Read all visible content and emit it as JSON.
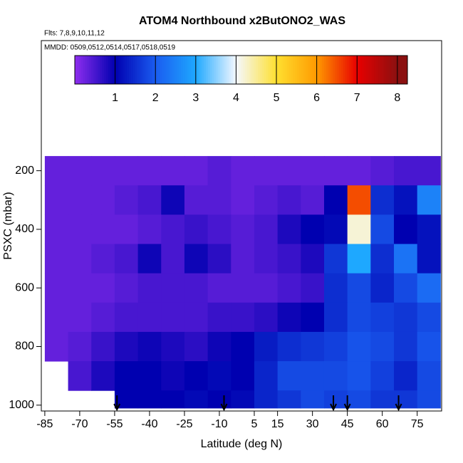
{
  "chart_data": {
    "type": "heatmap",
    "title": "ATOM4 Northbound x2ButONO2_WAS",
    "subtitle": "Flts: 7,8,9,10,11,12",
    "annotation": "MMDD: 0509,0512,0514,0517,0518,0519",
    "xlabel": "Latitude (deg N)",
    "ylabel": "PSXC (mbar)",
    "xlim": [
      -86.5,
      85.5
    ],
    "xticks": [
      -85,
      -70,
      -55,
      -40,
      -25,
      -10,
      5,
      15,
      30,
      45,
      60,
      75
    ],
    "ylim": [
      1020,
      -244
    ],
    "yticks": [
      200,
      400,
      600,
      800,
      1000
    ],
    "x_bins": [
      -85,
      -75,
      -65,
      -55,
      -45,
      -35,
      -25,
      -15,
      -5,
      5,
      15,
      25,
      35,
      45,
      55,
      65,
      75,
      85
    ],
    "y_bins": [
      150,
      250,
      350,
      450,
      550,
      650,
      750,
      850,
      950,
      1010
    ],
    "values": [
      [
        0.3,
        0.3,
        0.3,
        0.3,
        0.3,
        0.3,
        0.3,
        0.4,
        0.3,
        0.3,
        0.3,
        0.3,
        0.3,
        0.3,
        0.4,
        0.5,
        0.5
      ],
      [
        0.3,
        0.3,
        0.3,
        0.4,
        0.5,
        0.9,
        0.4,
        0.4,
        0.3,
        0.4,
        0.5,
        0.4,
        1.0,
        6.5,
        1.5,
        1.2,
        2.5
      ],
      [
        0.3,
        0.3,
        0.3,
        0.3,
        0.4,
        0.5,
        0.6,
        0.5,
        0.4,
        0.5,
        0.8,
        1.0,
        1.1,
        4.2,
        1.8,
        1.0,
        1.2
      ],
      [
        0.3,
        0.3,
        0.4,
        0.5,
        0.9,
        0.5,
        0.9,
        0.7,
        0.4,
        0.5,
        0.6,
        0.8,
        1.6,
        3.0,
        1.5,
        2.3,
        1.2
      ],
      [
        0.3,
        0.3,
        0.3,
        0.4,
        0.5,
        0.5,
        0.5,
        0.4,
        0.4,
        0.4,
        0.5,
        0.6,
        1.5,
        1.8,
        1.4,
        1.8,
        2.2
      ],
      [
        0.3,
        0.3,
        0.4,
        0.5,
        0.5,
        0.5,
        0.5,
        0.6,
        0.6,
        0.7,
        0.9,
        1.0,
        1.5,
        1.8,
        1.7,
        1.6,
        1.8
      ],
      [
        0.3,
        0.4,
        0.6,
        0.8,
        0.9,
        0.8,
        0.7,
        0.9,
        1.0,
        1.3,
        1.5,
        1.6,
        1.7,
        1.9,
        1.8,
        1.6,
        1.9
      ],
      [
        null,
        0.5,
        0.8,
        1.0,
        1.0,
        0.9,
        1.0,
        1.1,
        1.0,
        1.4,
        1.8,
        1.8,
        1.8,
        1.9,
        1.7,
        1.4,
        1.8
      ],
      [
        null,
        null,
        null,
        1.0,
        1.0,
        1.0,
        1.1,
        1.0,
        1.1,
        1.4,
        1.6,
        1.8,
        1.7,
        1.8,
        1.6,
        1.6,
        1.8
      ]
    ],
    "colorscale": [
      "#8f2eef",
      "#0000b0",
      "#1a5cf0",
      "#1ea8ff",
      "#f4f8ff",
      "#ffe030",
      "#ff9a00",
      "#e80000",
      "#8b1010"
    ],
    "colorbar_lim": [
      0,
      8.25
    ],
    "colorbar_ticks": [
      1,
      2,
      3,
      4,
      5,
      6,
      7,
      8
    ],
    "arrows": [
      -54,
      -8,
      39,
      45,
      67
    ]
  }
}
